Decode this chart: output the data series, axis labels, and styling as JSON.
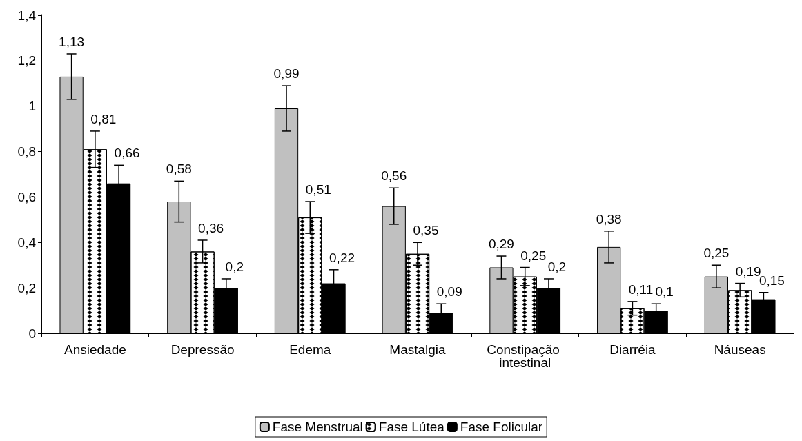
{
  "chart_data": {
    "type": "bar",
    "categories": [
      "Ansiedade",
      "Depressão",
      "Edema",
      "Mastalgia",
      "Constipação intestinal",
      "Diarréia",
      "Náuseas"
    ],
    "series": [
      {
        "name": "Fase Menstrual",
        "color": "#c0c0c0",
        "values": [
          1.13,
          0.58,
          0.99,
          0.56,
          0.29,
          0.38,
          0.25
        ],
        "errors": [
          0.1,
          0.09,
          0.1,
          0.08,
          0.05,
          0.07,
          0.05
        ],
        "value_labels": [
          "1,13",
          "0,58",
          "0,99",
          "0,56",
          "0,29",
          "0,38",
          "0,25"
        ]
      },
      {
        "name": "Fase Lútea",
        "color": "#ffffff",
        "values": [
          0.81,
          0.36,
          0.51,
          0.35,
          0.25,
          0.11,
          0.19
        ],
        "errors": [
          0.08,
          0.05,
          0.07,
          0.05,
          0.04,
          0.03,
          0.03
        ],
        "value_labels": [
          "0,81",
          "0,36",
          "0,51",
          "0,35",
          "0,25",
          "0,11",
          "0,19"
        ]
      },
      {
        "name": "Fase Folicular",
        "color": "#000000",
        "values": [
          0.66,
          0.2,
          0.22,
          0.09,
          0.2,
          0.1,
          0.15
        ],
        "errors": [
          0.08,
          0.04,
          0.06,
          0.04,
          0.04,
          0.03,
          0.03
        ],
        "value_labels": [
          "0,66",
          "0,2",
          "0,22",
          "0,09",
          "0,2",
          "0,1",
          "0,15"
        ]
      }
    ],
    "ylim": [
      0,
      1.4
    ],
    "yticks": [
      0,
      {
        "value": 0.2,
        "label": "0,2"
      },
      {
        "value": 0.4,
        "label": "0,4"
      },
      {
        "value": 0.6,
        "label": "0,6"
      },
      {
        "value": 0.8,
        "label": "0,8"
      },
      1,
      {
        "value": 1.2,
        "label": "1,2"
      },
      {
        "value": 1.4,
        "label": "1,4"
      }
    ],
    "grid": false,
    "legend": "bottom"
  }
}
